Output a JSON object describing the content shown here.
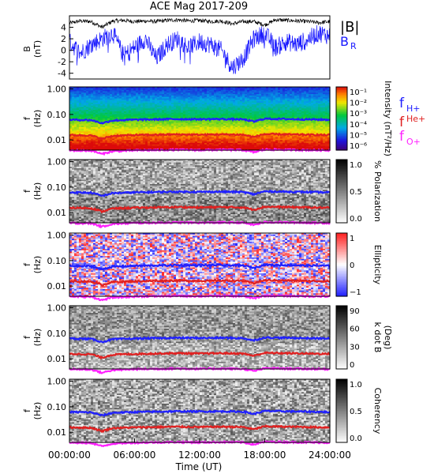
{
  "title": "ACE Mag 2017-209",
  "x_axis": {
    "label": "Time (UT)",
    "tick_labels": [
      "00:00:00",
      "06:00:00",
      "12:00:00",
      "18:00:00",
      "24:00:00"
    ],
    "tick_hours": [
      0,
      6,
      12,
      18,
      24
    ],
    "range_hours": [
      0,
      24
    ]
  },
  "freq_legend": {
    "items": [
      {
        "base": "f",
        "sub": "H+",
        "sup": "",
        "color": "#2020ff"
      },
      {
        "base": "f",
        "sub": "",
        "sup": "He+",
        "color": "#e02020"
      },
      {
        "base": "f",
        "sub": "O+",
        "sup": "",
        "color": "#ff20ff"
      }
    ]
  },
  "panels": {
    "b": {
      "ylabel": "B",
      "yunit": "(nT)",
      "yticks": [
        "4",
        "2",
        "0",
        "-2",
        "-4"
      ],
      "legend_total": "|B|",
      "legend_radial": "B",
      "legend_radial_sub": "R",
      "color_total": "#000000",
      "color_radial": "#1818ff"
    },
    "intensity": {
      "ylabel": "f",
      "yunit": "(Hz)",
      "yticks": [
        "1.00",
        "0.10",
        "0.01"
      ],
      "cbar_label": "Intensity (nT²/Hz)",
      "cbar_ticks": [
        "10⁻¹",
        "10⁻²",
        "10⁻³",
        "10⁻⁴",
        "10⁻⁵",
        "10⁻⁶"
      ],
      "colormap": "rainbow"
    },
    "polarization": {
      "ylabel": "f",
      "yunit": "(Hz)",
      "yticks": [
        "1.00",
        "0.10",
        "0.01"
      ],
      "cbar_label": "% Polarization",
      "cbar_ticks": [
        "1.0",
        "0.5",
        "0.0"
      ],
      "colormap": "gray"
    },
    "ellipticity": {
      "ylabel": "f",
      "yunit": "(Hz)",
      "yticks": [
        "1.00",
        "0.10",
        "0.01"
      ],
      "cbar_label": "Ellipticity",
      "cbar_ticks": [
        "1",
        "0",
        "−1"
      ],
      "colormap": "blue-white-red"
    },
    "kdotb": {
      "ylabel": "f",
      "yunit": "(Hz)",
      "yticks": [
        "1.00",
        "0.10",
        "0.01"
      ],
      "cbar_label": "k dot B",
      "cbar_unit": "(Deg)",
      "cbar_ticks": [
        "90",
        "60",
        "30",
        "0"
      ],
      "colormap": "gray-reversed"
    },
    "coherency": {
      "ylabel": "f",
      "yunit": "(Hz)",
      "yticks": [
        "1.00",
        "0.10",
        "0.01"
      ],
      "cbar_label": "Coherency",
      "cbar_ticks": [
        "1.0",
        "0.5",
        "0.0"
      ],
      "colormap": "gray"
    }
  },
  "chart_data": [
    {
      "type": "line",
      "x_units": "hours UT",
      "y_units": "nT",
      "ylim": [
        -5,
        6
      ],
      "series": [
        {
          "name": "|B|",
          "x": [
            0,
            1,
            2,
            3,
            4,
            5,
            6,
            7,
            8,
            9,
            10,
            11,
            12,
            13,
            14,
            15,
            16,
            17,
            18,
            19,
            20,
            21,
            22,
            23,
            24
          ],
          "values": [
            4.7,
            5.1,
            5.0,
            4.0,
            5.1,
            5.2,
            5.0,
            5.1,
            5.0,
            5.2,
            5.3,
            5.1,
            5.2,
            5.0,
            5.1,
            4.6,
            5.0,
            5.0,
            4.4,
            5.3,
            5.2,
            5.1,
            5.0,
            4.8,
            5.0
          ]
        },
        {
          "name": "B_R",
          "x": [
            0,
            1,
            2,
            3,
            4,
            5,
            6,
            7,
            8,
            9,
            10,
            11,
            12,
            13,
            14,
            15,
            16,
            17,
            18,
            19,
            20,
            21,
            22,
            23,
            24
          ],
          "values": [
            1.5,
            -0.5,
            1.0,
            2.0,
            3.0,
            -1.0,
            0.5,
            2.0,
            -1.5,
            1.0,
            2.0,
            0.5,
            1.5,
            1.0,
            0.0,
            -3.0,
            -1.5,
            2.0,
            3.0,
            0.5,
            1.5,
            1.0,
            2.0,
            3.0,
            2.5
          ]
        }
      ]
    },
    {
      "type": "line",
      "x_units": "hours UT",
      "y_units": "Hz",
      "y_scale": "log",
      "ylim": [
        0.004,
        1.2
      ],
      "series": [
        {
          "name": "fH+",
          "x": [
            0,
            2,
            3,
            4,
            6,
            8,
            10,
            12,
            14,
            16,
            17,
            18,
            20,
            22,
            24
          ],
          "values": [
            0.062,
            0.06,
            0.045,
            0.058,
            0.062,
            0.064,
            0.066,
            0.065,
            0.066,
            0.064,
            0.052,
            0.068,
            0.066,
            0.064,
            0.062
          ]
        },
        {
          "name": "fHe+",
          "x": [
            0,
            2,
            3,
            4,
            6,
            8,
            10,
            12,
            14,
            16,
            17,
            18,
            20,
            22,
            24
          ],
          "values": [
            0.0155,
            0.015,
            0.011,
            0.0145,
            0.0155,
            0.016,
            0.0165,
            0.016,
            0.0165,
            0.016,
            0.013,
            0.017,
            0.0165,
            0.016,
            0.0155
          ]
        },
        {
          "name": "fO+",
          "x": [
            0,
            2,
            3,
            4,
            6,
            8,
            10,
            12,
            14,
            16,
            17,
            18,
            20,
            22,
            24
          ],
          "values": [
            0.0039,
            0.0038,
            0.0028,
            0.0036,
            0.0039,
            0.004,
            0.0041,
            0.004,
            0.0041,
            0.004,
            0.0033,
            0.0042,
            0.0041,
            0.004,
            0.0039
          ]
        }
      ]
    }
  ]
}
